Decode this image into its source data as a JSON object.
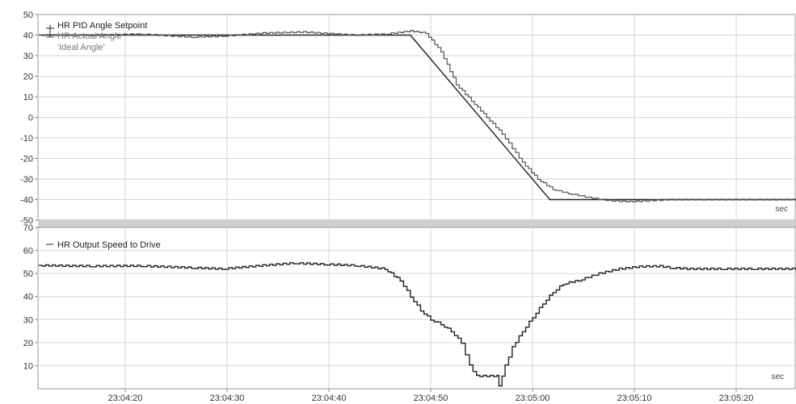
{
  "chart_data": [
    {
      "type": "line",
      "ylim": [
        -50,
        50
      ],
      "yticks": [
        -50,
        -40,
        -30,
        -20,
        -10,
        0,
        10,
        20,
        30,
        40,
        50
      ],
      "unit": "sec",
      "grid": true,
      "legend_position": "top-left",
      "series": [
        {
          "name": "HR PID Angle Setpoint",
          "color": "#222222",
          "points": [
            [
              0,
              40
            ],
            [
              36.5,
              40
            ],
            [
              50.2,
              -40
            ],
            [
              75,
              -40
            ]
          ]
        },
        {
          "name": "HR Actual Angle",
          "color": "#555555",
          "points": [
            [
              0,
              40
            ],
            [
              5,
              40
            ],
            [
              10,
              40.5
            ],
            [
              15,
              39
            ],
            [
              18,
              39.5
            ],
            [
              22,
              41
            ],
            [
              26,
              41.5
            ],
            [
              31,
              40
            ],
            [
              34,
              40.5
            ],
            [
              36.5,
              42
            ],
            [
              38,
              41
            ],
            [
              39.5,
              32
            ],
            [
              41,
              16
            ],
            [
              42.5,
              8
            ],
            [
              44,
              0
            ],
            [
              45.5,
              -8
            ],
            [
              47.5,
              -22
            ],
            [
              49,
              -30
            ],
            [
              50.5,
              -35
            ],
            [
              52,
              -37
            ],
            [
              54,
              -39
            ],
            [
              56,
              -40.5
            ],
            [
              58,
              -41
            ],
            [
              60,
              -40.5
            ],
            [
              62,
              -40
            ],
            [
              65,
              -40
            ],
            [
              70,
              -40
            ],
            [
              75,
              -40
            ]
          ]
        },
        {
          "name": "'Ideal Angle'",
          "color": "#888888",
          "points": []
        }
      ]
    },
    {
      "type": "line",
      "ylim": [
        0,
        70
      ],
      "yticks": [
        10,
        20,
        30,
        40,
        50,
        60,
        70
      ],
      "unit": "sec",
      "grid": true,
      "legend_position": "top-left",
      "xtick_labels": [
        "23:04:20",
        "23:04:30",
        "23:04:40",
        "23:04:50",
        "23:05:00",
        "23:05:10",
        "23:05:20"
      ],
      "series": [
        {
          "name": "HR Output Speed to Drive",
          "color": "#222222",
          "points": [
            [
              0,
              53.5
            ],
            [
              5,
              53.2
            ],
            [
              10,
              53.3
            ],
            [
              15,
              52.5
            ],
            [
              18,
              52
            ],
            [
              22,
              53.5
            ],
            [
              25,
              54.5
            ],
            [
              28,
              54
            ],
            [
              31,
              53.5
            ],
            [
              34,
              52
            ],
            [
              35.5,
              47
            ],
            [
              36.5,
              40
            ],
            [
              37.5,
              34
            ],
            [
              38.5,
              30
            ],
            [
              39.5,
              28
            ],
            [
              40.5,
              25
            ],
            [
              41.5,
              20
            ],
            [
              42.3,
              10
            ],
            [
              43,
              5.5
            ],
            [
              45,
              5.5
            ],
            [
              45.2,
              1.5
            ],
            [
              45.8,
              10
            ],
            [
              46.5,
              18
            ],
            [
              47.5,
              25
            ],
            [
              48.5,
              31
            ],
            [
              49.5,
              37
            ],
            [
              50.5,
              42
            ],
            [
              51.5,
              45.5
            ],
            [
              53,
              47
            ],
            [
              55,
              50
            ],
            [
              57,
              52
            ],
            [
              59,
              53
            ],
            [
              61,
              53.2
            ],
            [
              62,
              52.5
            ],
            [
              64,
              52
            ],
            [
              67,
              52
            ],
            [
              70,
              52
            ],
            [
              75,
              52
            ]
          ]
        }
      ]
    }
  ]
}
